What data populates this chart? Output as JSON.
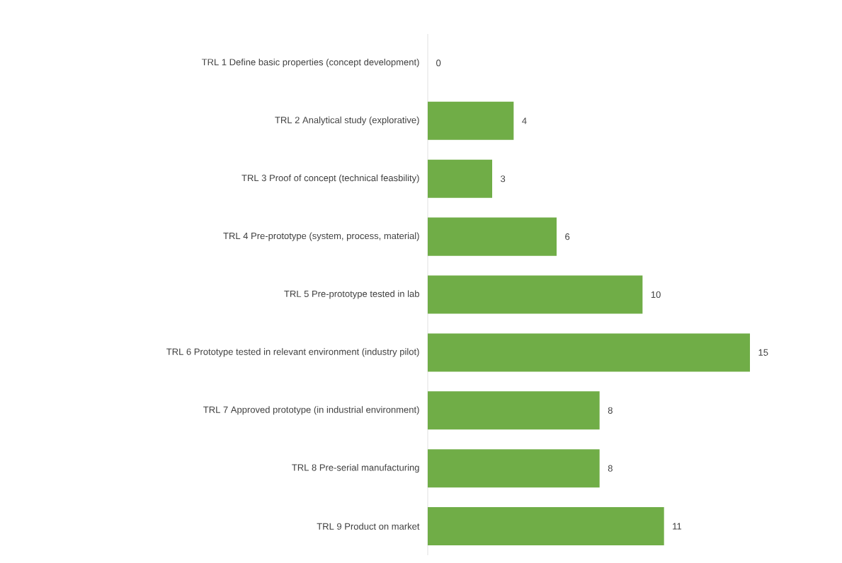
{
  "chart_data": {
    "type": "bar",
    "orientation": "horizontal",
    "categories": [
      "TRL 1 Define basic properties (concept development)",
      "TRL 2 Analytical study (explorative)",
      "TRL 3 Proof of concept (technical feasbility)",
      "TRL 4 Pre-prototype (system, process, material)",
      "TRL 5 Pre-prototype tested in lab",
      "TRL 6 Prototype tested in relevant environment (industry pilot)",
      "TRL 7 Approved prototype (in industrial environment)",
      "TRL 8 Pre-serial manufacturing",
      "TRL 9 Product on market"
    ],
    "values": [
      0,
      4,
      3,
      6,
      10,
      15,
      8,
      8,
      11
    ],
    "color": "#70ad47",
    "data_labels": true
  }
}
